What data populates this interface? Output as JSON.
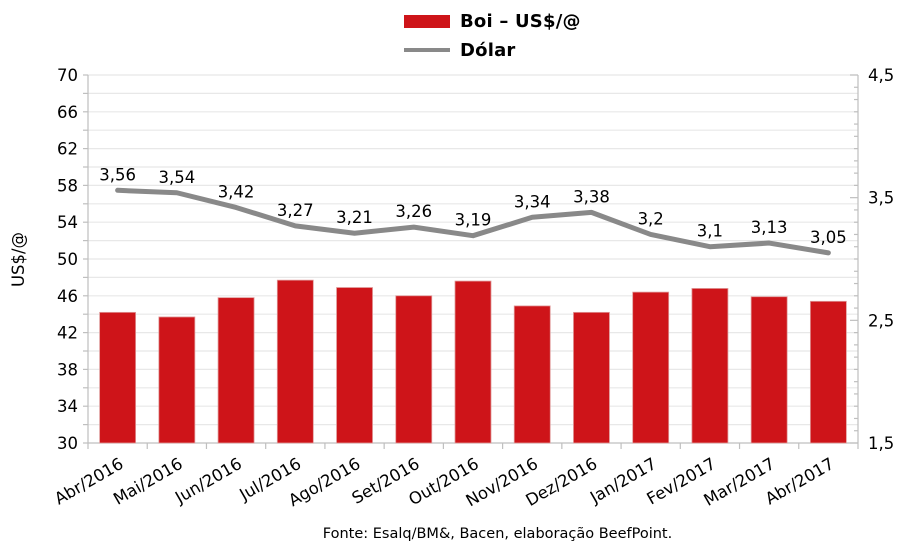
{
  "legend": {
    "items": [
      {
        "label": "Boi – US$/@",
        "swatch": "bar",
        "color": "#ce1419"
      },
      {
        "label": "Dólar",
        "swatch": "line",
        "color": "#898989"
      }
    ]
  },
  "chart_data": {
    "type": "combo-bar-line",
    "categories": [
      "Abr/2016",
      "Mai/2016",
      "Jun/2016",
      "Jul/2016",
      "Ago/2016",
      "Set/2016",
      "Out/2016",
      "Nov/2016",
      "Dez/2016",
      "Jan/2017",
      "Fev/2017",
      "Mar/2017",
      "Abr/2017"
    ],
    "series": [
      {
        "name": "Boi – US$/@",
        "type": "bar",
        "axis": "left",
        "color": "#ce1419",
        "values": [
          44.2,
          43.7,
          45.8,
          47.7,
          46.9,
          46.0,
          47.6,
          44.9,
          44.2,
          46.4,
          46.8,
          45.9,
          45.4
        ]
      },
      {
        "name": "Dólar",
        "type": "line",
        "axis": "right",
        "color": "#898989",
        "values": [
          3.56,
          3.54,
          3.42,
          3.27,
          3.21,
          3.26,
          3.19,
          3.34,
          3.38,
          3.2,
          3.1,
          3.13,
          3.05
        ],
        "data_labels": [
          "3,56",
          "3,54",
          "3,42",
          "3,27",
          "3,21",
          "3,26",
          "3,19",
          "3,34",
          "3,38",
          "3,2",
          "3,1",
          "3,13",
          "3,05"
        ]
      }
    ],
    "left_axis": {
      "title": "US$/@",
      "min": 30,
      "max": 70,
      "grid_step": 2,
      "label_step": 4,
      "tick_labels": [
        "30",
        "34",
        "38",
        "42",
        "46",
        "50",
        "54",
        "58",
        "62",
        "66",
        "70"
      ]
    },
    "right_axis": {
      "min": 1.5,
      "max": 4.5,
      "label_step": 1,
      "minor_tick_step": 0.1,
      "tick_labels": [
        "1,5",
        "2,5",
        "3,5",
        "4,5"
      ]
    },
    "grid": true,
    "legend_position": "top-center"
  },
  "footer": {
    "text": "Fonte: Esalq/BM&, Bacen, elaboração BeefPoint."
  },
  "colors": {
    "bar": "#ce1419",
    "bar_edge": "#e09a9a",
    "line": "#898989",
    "grid": "#e8e8e8",
    "axis": "#bfbfbf",
    "text": "#000000",
    "background": "#ffffff"
  }
}
